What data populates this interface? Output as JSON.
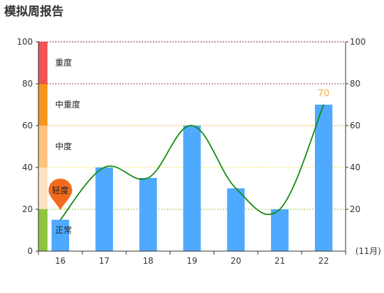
{
  "title": "模拟周报告",
  "chart_data": {
    "type": "bar",
    "categories": [
      "16",
      "17",
      "18",
      "19",
      "20",
      "21",
      "22"
    ],
    "values": [
      15,
      40,
      35,
      60,
      30,
      20,
      70
    ],
    "line_values": [
      15,
      40,
      35,
      60,
      30,
      20,
      70
    ],
    "xunit": "(11月)",
    "ylim": [
      0,
      100
    ],
    "yticks": [
      0,
      20,
      40,
      60,
      80,
      100
    ],
    "right_yticks": [
      {
        "value": 20,
        "color": "#8dc63f"
      },
      {
        "value": 40,
        "color": "#f4e24a"
      },
      {
        "value": 60,
        "color": "#f2a93b"
      },
      {
        "value": 80,
        "color": "#a23b3b"
      },
      {
        "value": 100,
        "color": "#8b1c1c"
      }
    ],
    "bands": [
      {
        "label": "正常",
        "from": 0,
        "to": 20,
        "color": "#8dc63f"
      },
      {
        "label": "轻度",
        "from": 20,
        "to": 40,
        "color": "#fde3c0"
      },
      {
        "label": "中度",
        "from": 40,
        "to": 60,
        "color": "#ffc380"
      },
      {
        "label": "中重度",
        "from": 60,
        "to": 80,
        "color": "#f6941d"
      },
      {
        "label": "重度",
        "from": 80,
        "to": 100,
        "color": "#f05454"
      }
    ],
    "bar_color": "#4ea9ff",
    "line_color": "#128a12",
    "marker_label": "轻度",
    "marker_color": "#f26b1d",
    "top_label": "70",
    "grid": true
  }
}
